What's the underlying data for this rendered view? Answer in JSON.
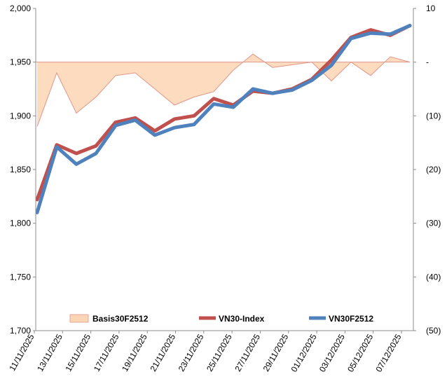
{
  "chart_data": {
    "type": "line",
    "title": "",
    "x": [
      "11/11/2025",
      "12/11/2025",
      "13/11/2025",
      "14/11/2025",
      "17/11/2025",
      "18/11/2025",
      "19/11/2025",
      "20/11/2025",
      "21/11/2025",
      "24/11/2025",
      "25/11/2025",
      "26/11/2025",
      "27/11/2025",
      "28/11/2025",
      "01/12/2025",
      "02/12/2025",
      "03/12/2025",
      "04/12/2025",
      "05/12/2025",
      "08/12/2025"
    ],
    "x_ticks": [
      "11/11/2025",
      "13/11/2025",
      "15/11/2025",
      "17/11/2025",
      "19/11/2025",
      "21/11/2025",
      "23/11/2025",
      "25/11/2025",
      "27/11/2025",
      "29/11/2025",
      "01/12/2025",
      "03/12/2025",
      "05/12/2025",
      "07/12/2025"
    ],
    "y_left": {
      "min": 1700,
      "max": 2000,
      "step": 50,
      "ticks": [
        "1,700",
        "1,750",
        "1,800",
        "1,850",
        "1,900",
        "1,950",
        "2,000"
      ]
    },
    "y_right": {
      "min": -50,
      "max": 10,
      "ticks": [
        "10",
        "-",
        "(10)",
        "(20)",
        "(30)",
        "(40)",
        "(50)"
      ]
    },
    "series": [
      {
        "name": "Basis30F2512",
        "type": "area",
        "axis": "right",
        "color": "#fcd5b4",
        "line_color": "#e0968a",
        "values": [
          -12,
          -2,
          -9.5,
          -6.5,
          -2.5,
          -2,
          -5,
          -8,
          -6.5,
          -5.5,
          -1.5,
          1.5,
          -1,
          -0.5,
          0,
          -3.5,
          0,
          -2.5,
          1,
          0
        ]
      },
      {
        "name": "VN30-Index",
        "type": "line",
        "axis": "left",
        "color": "#c0504d",
        "values": [
          1822,
          1873,
          1865,
          1872,
          1894,
          1898,
          1886,
          1897,
          1900,
          1916,
          1910,
          1923,
          1921,
          1925,
          1934,
          1952,
          1973,
          1980,
          1975,
          1984
        ]
      },
      {
        "name": "VN30F2512",
        "type": "line",
        "axis": "left",
        "color": "#4f81bd",
        "values": [
          1810,
          1871,
          1855,
          1865,
          1891,
          1896,
          1882,
          1889,
          1892,
          1911,
          1908,
          1925,
          1921,
          1924,
          1933,
          1947,
          1972,
          1977,
          1976,
          1984
        ]
      }
    ],
    "legend": {
      "position": "bottom",
      "labels": [
        "Basis30F2512",
        "VN30-Index",
        "VN30F2512"
      ]
    }
  }
}
